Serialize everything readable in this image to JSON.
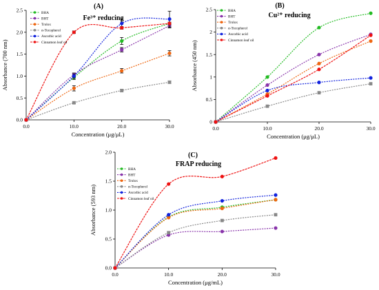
{
  "chart_data": [
    {
      "type": "line",
      "panel_label": "(A)",
      "title": "Fe³⁺ reducing",
      "xlabel": "Concentration (μg/μL)",
      "ylabel": "Absorbance (700 nm)",
      "x": [
        0,
        10,
        20,
        30
      ],
      "xticks": [
        "0.0",
        "10.0",
        "20.0",
        "30.0"
      ],
      "xlim": [
        0,
        30
      ],
      "yticks": [
        "0.0",
        "0.5",
        "1.0",
        "1.5",
        "2.0",
        "2.5"
      ],
      "ylim": [
        0,
        2.5
      ],
      "legend": "top-left",
      "series": [
        {
          "name": "BHA",
          "color": "#22bb22",
          "values": [
            0,
            0.97,
            1.8,
            2.2
          ],
          "errors": [
            0,
            0.05,
            0.08,
            0.1
          ]
        },
        {
          "name": "BHT",
          "color": "#8833aa",
          "values": [
            0,
            1.03,
            1.6,
            2.15
          ],
          "errors": [
            0,
            0.04,
            0.05,
            0.05
          ]
        },
        {
          "name": "Trolox",
          "color": "#ee6611",
          "values": [
            0,
            0.72,
            1.12,
            1.52
          ],
          "errors": [
            0,
            0.06,
            0.05,
            0.06
          ]
        },
        {
          "name": "α-Tocopherol",
          "color": "#888888",
          "values": [
            0,
            0.39,
            0.67,
            0.86
          ],
          "errors": [
            0,
            0.02,
            0.03,
            0.03
          ]
        },
        {
          "name": "Ascorbic acid",
          "color": "#1122dd",
          "values": [
            0,
            1.0,
            2.2,
            2.3
          ],
          "errors": [
            0,
            0.05,
            0.1,
            0.18
          ]
        },
        {
          "name": "Cinnamon leaf oil",
          "color": "#ee1111",
          "values": [
            0,
            2.0,
            2.1,
            2.2
          ],
          "errors": [
            0,
            0.03,
            0.03,
            0.03
          ]
        }
      ]
    },
    {
      "type": "line",
      "panel_label": "(B)",
      "title": "Cu²⁺ reducing",
      "xlabel": "Concentration (μg/μL)",
      "ylabel": "Absorbance (450 nm)",
      "x": [
        0,
        10,
        20,
        30
      ],
      "xticks": [
        "0.0",
        "10.0",
        "20.0",
        "30.0"
      ],
      "xlim": [
        0,
        30
      ],
      "yticks": [
        "0",
        "0.5",
        "1",
        "1.5",
        "2",
        "2.5"
      ],
      "ylim": [
        0,
        2.5
      ],
      "legend": "top-left",
      "series": [
        {
          "name": "BHA",
          "color": "#22bb22",
          "values": [
            0,
            1.0,
            2.1,
            2.42
          ]
        },
        {
          "name": "BHT",
          "color": "#8833aa",
          "values": [
            0,
            0.82,
            1.5,
            1.95
          ]
        },
        {
          "name": "Trolox",
          "color": "#ee6611",
          "values": [
            0,
            0.62,
            1.3,
            1.8
          ]
        },
        {
          "name": "α-Tocopherol",
          "color": "#888888",
          "values": [
            0,
            0.35,
            0.65,
            0.85
          ]
        },
        {
          "name": "Ascorbic acid",
          "color": "#1122dd",
          "values": [
            0,
            0.7,
            0.88,
            0.98
          ]
        },
        {
          "name": "Cinnamon leaf oil",
          "color": "#ee1111",
          "values": [
            0,
            0.58,
            1.17,
            1.93
          ]
        }
      ]
    },
    {
      "type": "line",
      "panel_label": "(C)",
      "title": "FRAP reducing",
      "xlabel": "Concentration (μg/mL)",
      "ylabel": "Absorbance (593 nm)",
      "x": [
        0,
        10,
        20,
        30
      ],
      "xticks": [
        "0.0",
        "10.0",
        "20.0",
        "30.0"
      ],
      "xlim": [
        0,
        30
      ],
      "yticks": [
        "0.0",
        "0.5",
        "1.0",
        "1.5",
        "2.0"
      ],
      "ylim": [
        0,
        2.0
      ],
      "legend": "top-left",
      "series": [
        {
          "name": "BHA",
          "color": "#22bb22",
          "values": [
            0,
            0.88,
            1.05,
            1.18
          ]
        },
        {
          "name": "BHT",
          "color": "#8833aa",
          "values": [
            0,
            0.57,
            0.63,
            0.69
          ]
        },
        {
          "name": "Trolox",
          "color": "#ee6611",
          "values": [
            0,
            0.87,
            1.03,
            1.18
          ]
        },
        {
          "name": "α-Tocopherol",
          "color": "#888888",
          "values": [
            0,
            0.61,
            0.82,
            0.92
          ]
        },
        {
          "name": "Ascorbic acid",
          "color": "#1122dd",
          "values": [
            0,
            0.92,
            1.16,
            1.26
          ]
        },
        {
          "name": "Cinnamon leaf oil",
          "color": "#ee1111",
          "values": [
            0,
            1.45,
            1.58,
            1.9
          ]
        }
      ]
    }
  ]
}
